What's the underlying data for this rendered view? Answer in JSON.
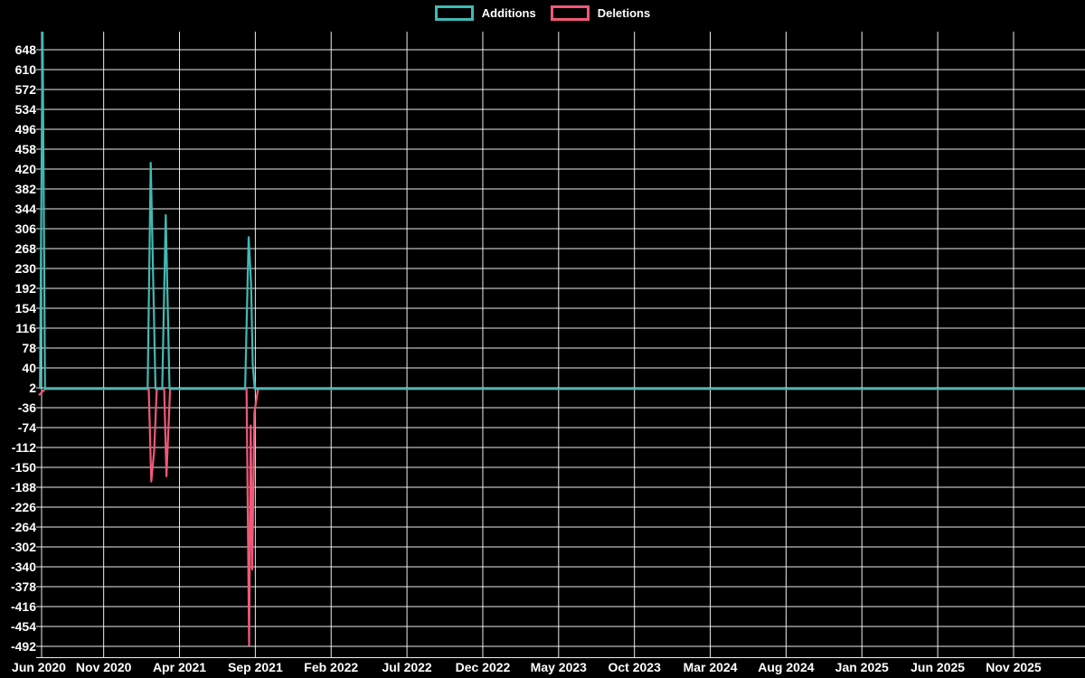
{
  "chart_data": {
    "type": "line",
    "title": "",
    "background_color": "#000000",
    "gridline_color": "#ededed",
    "legend_position": "top-center",
    "legend": [
      {
        "label": "Additions",
        "color": "#40bab4"
      },
      {
        "label": "Deletions",
        "color": "#f15879"
      }
    ],
    "x_axis": {
      "unit": "months since Jun 2020",
      "tick_labels": [
        "Jun 2020",
        "Nov 2020",
        "Apr 2021",
        "Sep 2021",
        "Feb 2022",
        "Jul 2022",
        "Dec 2022",
        "May 2023",
        "Oct 2023",
        "Mar 2024",
        "Aug 2024",
        "Jan 2025",
        "Jun 2025",
        "Nov 2025"
      ],
      "tick_month_index": [
        0,
        5,
        10,
        15,
        20,
        25,
        30,
        35,
        40,
        45,
        50,
        55,
        60,
        65
      ]
    },
    "y_axis": {
      "min": -492,
      "max": 648,
      "step": 38,
      "tick_labels": [
        648,
        610,
        572,
        534,
        496,
        458,
        420,
        382,
        344,
        306,
        268,
        230,
        192,
        154,
        116,
        78,
        40,
        2,
        -36,
        -74,
        -112,
        -150,
        -188,
        -226,
        -264,
        -302,
        -340,
        -378,
        -416,
        -454,
        -492
      ]
    },
    "series": [
      {
        "name": "Additions",
        "color": "#40bab4",
        "baseline": 0,
        "points": [
          [
            0.8,
            0
          ],
          [
            0.97,
            690
          ],
          [
            1.13,
            0
          ],
          [
            7.9,
            0
          ],
          [
            8.1,
            432
          ],
          [
            8.42,
            0
          ],
          [
            8.86,
            0
          ],
          [
            9.09,
            332
          ],
          [
            9.34,
            0
          ],
          [
            14.33,
            0
          ],
          [
            14.56,
            290
          ],
          [
            14.72,
            200
          ],
          [
            14.83,
            48
          ],
          [
            14.96,
            0
          ],
          [
            69.8,
            0
          ]
        ]
      },
      {
        "name": "Deletions",
        "color": "#f15879",
        "baseline": 0,
        "points": [
          [
            0.73,
            -12
          ],
          [
            1.15,
            0
          ],
          [
            7.97,
            0
          ],
          [
            8.14,
            -177
          ],
          [
            8.33,
            -118
          ],
          [
            8.5,
            0
          ],
          [
            8.99,
            0
          ],
          [
            9.14,
            -167
          ],
          [
            9.38,
            0
          ],
          [
            14.42,
            0
          ],
          [
            14.59,
            -490
          ],
          [
            14.7,
            -70
          ],
          [
            14.79,
            -345
          ],
          [
            14.94,
            -45
          ],
          [
            15.18,
            0
          ],
          [
            69.8,
            0
          ]
        ]
      }
    ],
    "spikes_summary": [
      {
        "date": "Jul 2020",
        "additions": "more than 648 (clipped at chart top)",
        "deletions": -12
      },
      {
        "date": "Feb 2021",
        "additions": 432,
        "deletions": -177
      },
      {
        "date": "Mar 2021",
        "additions": 332,
        "deletions": -167
      },
      {
        "date": "Aug 2021",
        "additions": 290,
        "deletions": -490
      }
    ]
  }
}
